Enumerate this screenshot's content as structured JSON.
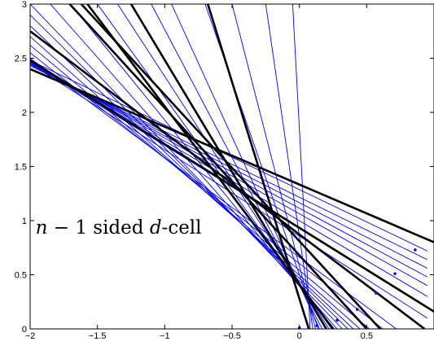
{
  "chart_data": {
    "type": "line",
    "title": "",
    "xlabel": "",
    "ylabel": "",
    "xlim": [
      -2,
      1
    ],
    "ylim": [
      0,
      3
    ],
    "grid": false,
    "x_ticks": [
      -2,
      -1.5,
      -1,
      -0.5,
      0,
      0.5
    ],
    "x_tick_labels": [
      "−2",
      "−1.5",
      "−1",
      "−0.5",
      "0",
      "0.5"
    ],
    "y_ticks": [
      0,
      0.5,
      1,
      1.5,
      2,
      2.5,
      3
    ],
    "y_tick_labels": [
      "0",
      "0.5",
      "1",
      "1.5",
      "2",
      "2.5",
      "3"
    ],
    "annotation": {
      "parts": [
        {
          "text": "n",
          "italic": true
        },
        {
          "text": " − 1 sided ",
          "italic": false
        },
        {
          "text": "d",
          "italic": true
        },
        {
          "text": "-cell",
          "italic": false
        }
      ],
      "x": -1.96,
      "y": 0.88
    },
    "colors": {
      "thick": "#000000",
      "thin": "#0000ff",
      "points": "#0000ff"
    },
    "series": [
      {
        "style": "thick",
        "lines": [
          [
            [
              -2,
              2.4
            ],
            [
              1,
              0.8
            ]
          ],
          [
            [
              -2,
              2.48
            ],
            [
              1,
              0.16
            ]
          ],
          [
            [
              -2,
              2.75
            ],
            [
              0.93,
              0
            ]
          ],
          [
            [
              -2,
              3.7
            ],
            [
              0.25,
              0
            ]
          ],
          [
            [
              -1.25,
              3
            ],
            [
              0.2,
              0
            ]
          ],
          [
            [
              -0.68,
              3
            ],
            [
              0.07,
              0
            ]
          ],
          [
            [
              -1.62,
              3
            ],
            [
              0.6,
              0
            ]
          ],
          [
            [
              -2,
              3.4
            ],
            [
              0.5,
              0
            ]
          ]
        ]
      },
      {
        "style": "thin",
        "lines": [
          [
            [
              -2,
              2.45
            ],
            [
              0.95,
              0.1
            ]
          ],
          [
            [
              -2,
              2.46
            ],
            [
              0.95,
              0.2
            ]
          ],
          [
            [
              -2,
              2.47
            ],
            [
              0.95,
              0.3
            ]
          ],
          [
            [
              -2,
              2.46
            ],
            [
              0.95,
              0.4
            ]
          ],
          [
            [
              -2,
              2.45
            ],
            [
              0.95,
              0.48
            ]
          ],
          [
            [
              -2,
              2.44
            ],
            [
              0.95,
              0.56
            ]
          ],
          [
            [
              -2,
              2.43
            ],
            [
              0.95,
              0.64
            ]
          ],
          [
            [
              -2,
              2.48
            ],
            [
              0.95,
              0.72
            ]
          ],
          [
            [
              -2,
              2.5
            ],
            [
              0.72,
              0
            ]
          ],
          [
            [
              -2,
              2.55
            ],
            [
              0.62,
              0
            ]
          ],
          [
            [
              -2,
              2.62
            ],
            [
              0.52,
              0
            ]
          ],
          [
            [
              -2,
              2.7
            ],
            [
              0.45,
              0
            ]
          ],
          [
            [
              -2,
              2.8
            ],
            [
              0.4,
              0
            ]
          ],
          [
            [
              -2,
              2.9
            ],
            [
              0.36,
              0
            ]
          ],
          [
            [
              -2,
              3.0
            ],
            [
              0.32,
              0
            ]
          ],
          [
            [
              -1.85,
              3
            ],
            [
              0.28,
              0
            ]
          ],
          [
            [
              -1.7,
              3
            ],
            [
              0.26,
              0
            ]
          ],
          [
            [
              -1.5,
              3
            ],
            [
              0.24,
              0
            ]
          ],
          [
            [
              -1.35,
              3
            ],
            [
              0.22,
              0
            ]
          ],
          [
            [
              -1.1,
              3
            ],
            [
              0.17,
              0
            ]
          ],
          [
            [
              -0.95,
              3
            ],
            [
              0.15,
              0
            ]
          ],
          [
            [
              -0.7,
              3
            ],
            [
              0.14,
              0
            ]
          ],
          [
            [
              -0.5,
              3
            ],
            [
              0.12,
              0
            ]
          ],
          [
            [
              -0.25,
              3
            ],
            [
              0.1,
              0
            ]
          ],
          [
            [
              -0.05,
              3
            ],
            [
              0.08,
              0
            ]
          ]
        ]
      }
    ],
    "points": [
      [
        0,
        0.01
      ],
      [
        0.13,
        0.03
      ],
      [
        0.28,
        0.08
      ],
      [
        0.43,
        0.18
      ],
      [
        0.57,
        0.33
      ],
      [
        0.71,
        0.51
      ],
      [
        0.86,
        0.73
      ]
    ]
  }
}
